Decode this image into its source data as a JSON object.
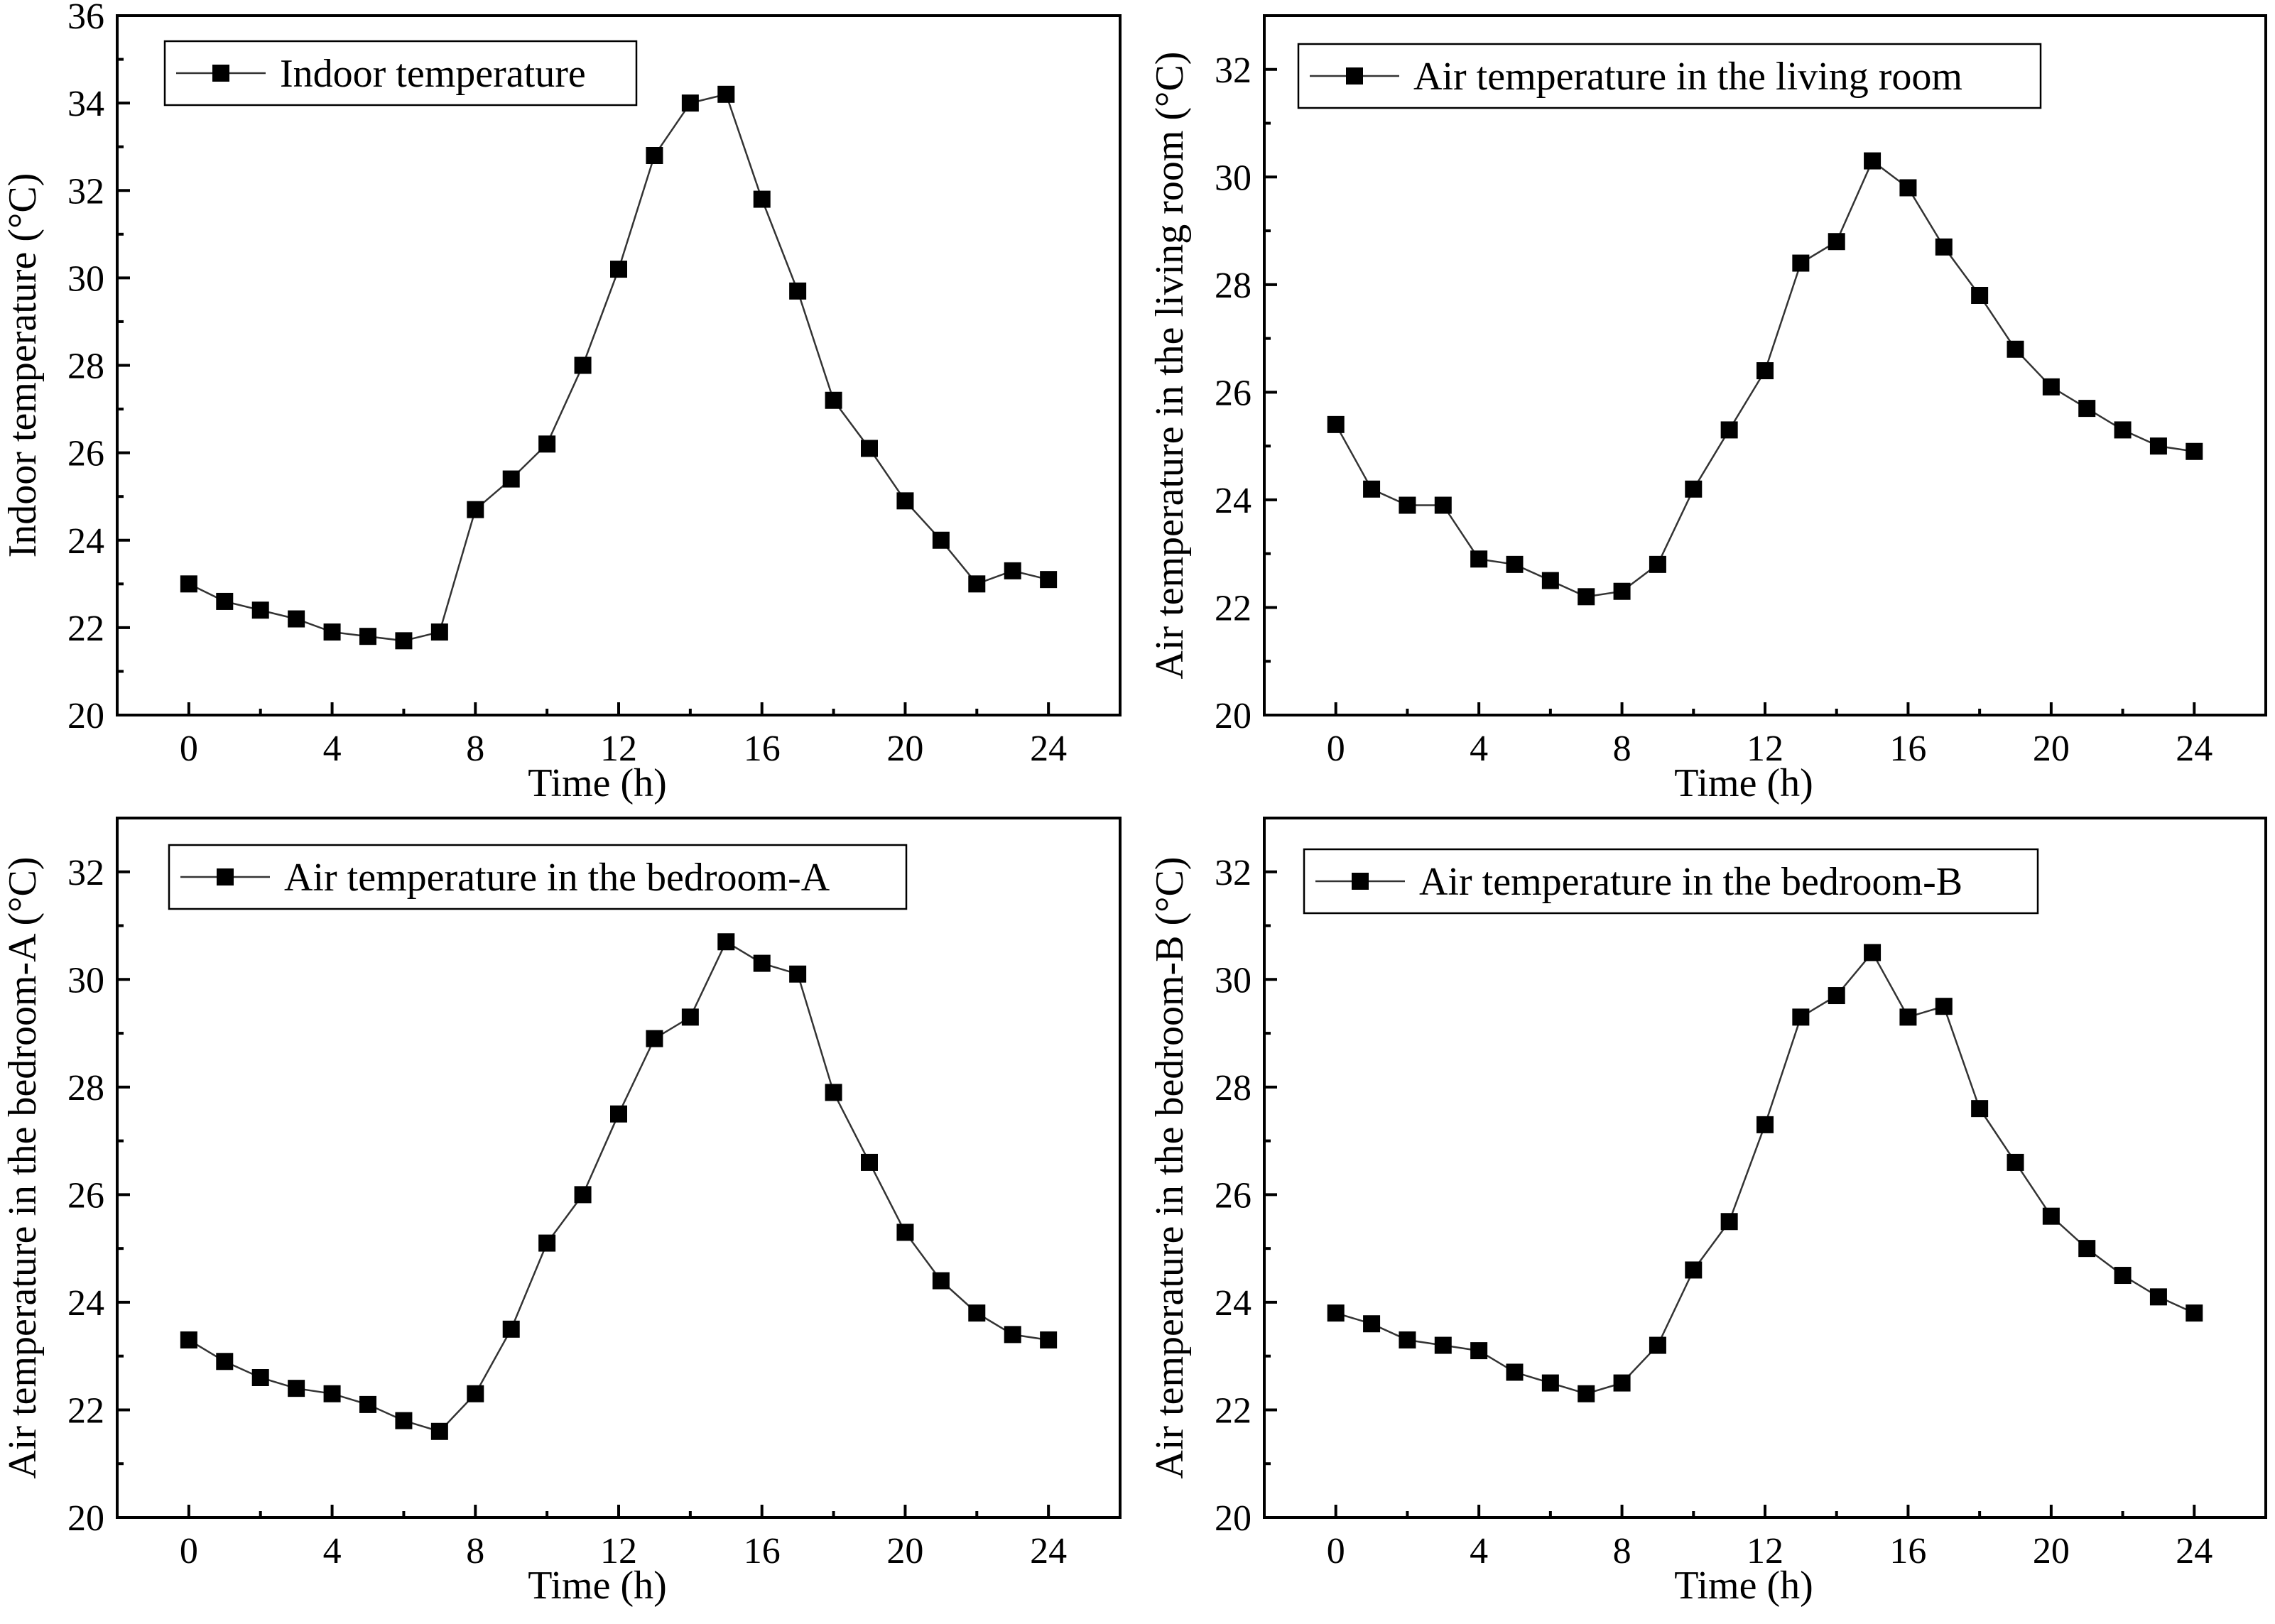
{
  "chart_data": [
    {
      "type": "line",
      "title": "",
      "xlabel": "Time (h)",
      "ylabel": "Indoor temperature (°C)",
      "legend": "Indoor temperature",
      "legend_position": "top-left",
      "xlim": [
        -2,
        26
      ],
      "ylim": [
        20,
        36
      ],
      "xticks": [
        0,
        4,
        8,
        12,
        16,
        20,
        24
      ],
      "yticks": [
        20,
        22,
        24,
        26,
        28,
        30,
        32,
        34,
        36
      ],
      "x": [
        0,
        1,
        2,
        3,
        4,
        5,
        6,
        7,
        8,
        9,
        10,
        11,
        12,
        13,
        14,
        15,
        16,
        17,
        18,
        19,
        20,
        21,
        22,
        23,
        24
      ],
      "values": [
        23.0,
        22.6,
        22.4,
        22.2,
        21.9,
        21.8,
        21.7,
        21.9,
        24.7,
        25.4,
        26.2,
        28.0,
        30.2,
        32.8,
        34.0,
        34.2,
        31.8,
        29.7,
        27.2,
        26.1,
        24.9,
        24.0,
        23.0,
        23.3,
        23.1
      ]
    },
    {
      "type": "line",
      "title": "",
      "xlabel": "Time (h)",
      "ylabel": "Air temperature in the living room (°C)",
      "legend": "Air temperature in the living room",
      "legend_position": "top-left",
      "xlim": [
        -2,
        26
      ],
      "ylim": [
        20,
        33
      ],
      "xticks": [
        0,
        4,
        8,
        12,
        16,
        20,
        24
      ],
      "yticks": [
        20,
        22,
        24,
        26,
        28,
        30,
        32
      ],
      "x": [
        0,
        1,
        2,
        3,
        4,
        5,
        6,
        7,
        8,
        9,
        10,
        11,
        12,
        13,
        14,
        15,
        16,
        17,
        18,
        19,
        20,
        21,
        22,
        23,
        24
      ],
      "values": [
        25.4,
        24.2,
        23.9,
        23.9,
        22.9,
        22.8,
        22.5,
        22.2,
        22.3,
        22.8,
        24.2,
        25.3,
        26.4,
        28.4,
        28.8,
        30.3,
        29.8,
        28.7,
        27.8,
        26.8,
        26.1,
        25.7,
        25.3,
        25.0,
        24.9
      ]
    },
    {
      "type": "line",
      "title": "",
      "xlabel": "Time (h)",
      "ylabel": "Air temperature in the bedroom-A (°C)",
      "legend": "Air temperature in the bedroom-A",
      "legend_position": "top-left",
      "xlim": [
        -2,
        26
      ],
      "ylim": [
        20,
        33
      ],
      "xticks": [
        0,
        4,
        8,
        12,
        16,
        20,
        24
      ],
      "yticks": [
        20,
        22,
        24,
        26,
        28,
        30,
        32
      ],
      "x": [
        0,
        1,
        2,
        3,
        4,
        5,
        6,
        7,
        8,
        9,
        10,
        11,
        12,
        13,
        14,
        15,
        16,
        17,
        18,
        19,
        20,
        21,
        22,
        23,
        24
      ],
      "values": [
        23.3,
        22.9,
        22.6,
        22.4,
        22.3,
        22.1,
        21.8,
        21.6,
        22.3,
        23.5,
        25.1,
        26.0,
        27.5,
        28.9,
        29.3,
        30.7,
        30.3,
        30.1,
        27.9,
        26.6,
        25.3,
        24.4,
        23.8,
        23.4,
        23.3
      ]
    },
    {
      "type": "line",
      "title": "",
      "xlabel": "Time (h)",
      "ylabel": "Air temperature in the bedroom-B (°C)",
      "legend": "Air temperature in the bedroom-B",
      "legend_position": "top-left",
      "xlim": [
        -2,
        26
      ],
      "ylim": [
        20,
        33
      ],
      "xticks": [
        0,
        4,
        8,
        12,
        16,
        20,
        24
      ],
      "yticks": [
        20,
        22,
        24,
        26,
        28,
        30,
        32
      ],
      "x": [
        0,
        1,
        2,
        3,
        4,
        5,
        6,
        7,
        8,
        9,
        10,
        11,
        12,
        13,
        14,
        15,
        16,
        17,
        18,
        19,
        20,
        21,
        22,
        23,
        24
      ],
      "values": [
        23.8,
        23.6,
        23.3,
        23.2,
        23.1,
        22.7,
        22.5,
        22.3,
        22.5,
        23.2,
        24.6,
        25.5,
        27.3,
        29.3,
        29.7,
        30.5,
        29.3,
        29.5,
        27.6,
        26.6,
        25.6,
        25.0,
        24.5,
        24.1,
        23.8
      ]
    }
  ]
}
